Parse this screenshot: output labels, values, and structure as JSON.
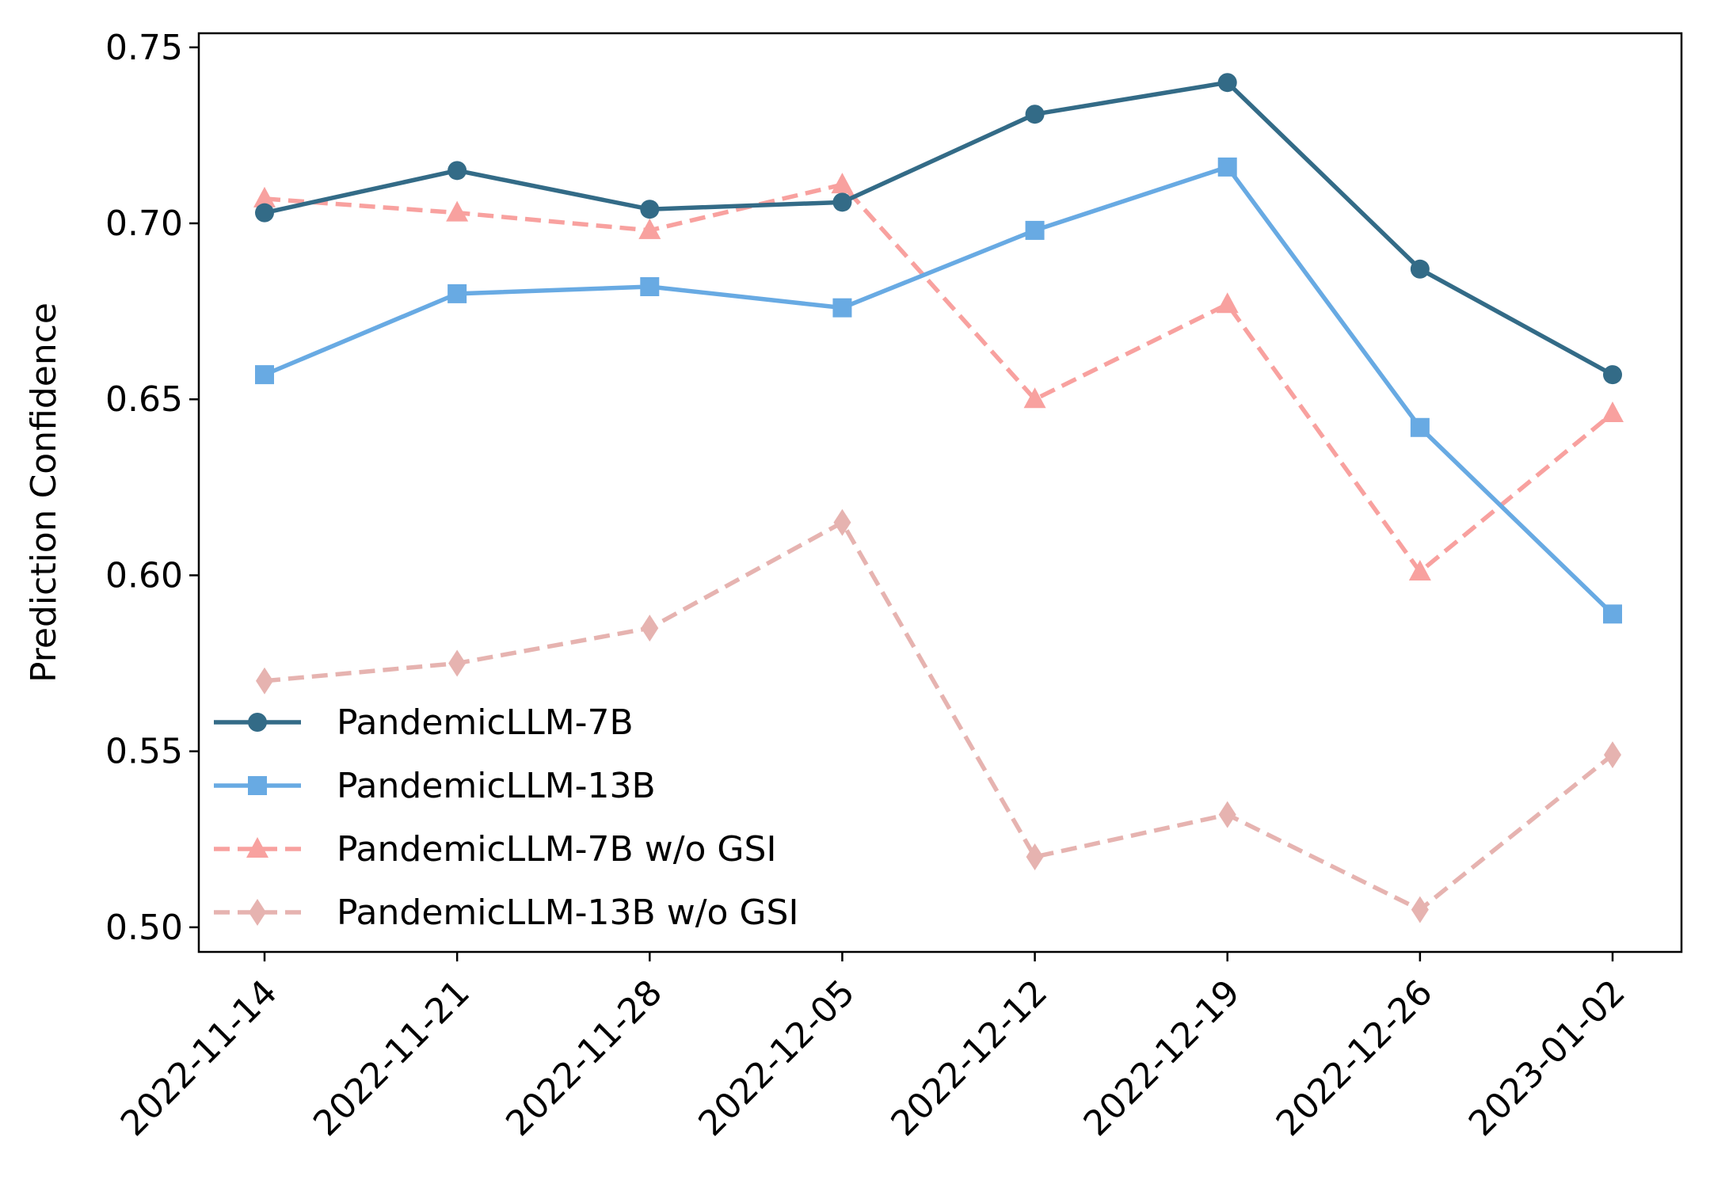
{
  "chart_data": {
    "type": "line",
    "title": "",
    "xlabel": "",
    "ylabel": "Prediction Confidence",
    "ylim": [
      0.493,
      0.754
    ],
    "yticks": [
      "0.50",
      "0.55",
      "0.60",
      "0.65",
      "0.70",
      "0.75"
    ],
    "ytick_values": [
      0.5,
      0.55,
      0.6,
      0.65,
      0.7,
      0.75
    ],
    "x": [
      "2022-11-14",
      "2022-11-21",
      "2022-11-28",
      "2022-12-05",
      "2022-12-12",
      "2022-12-19",
      "2022-12-26",
      "2023-01-02"
    ],
    "grid": false,
    "legend_position": "lower-left",
    "series": [
      {
        "name": "PandemicLLM-7B",
        "values": [
          0.703,
          0.715,
          0.704,
          0.706,
          0.731,
          0.74,
          0.687,
          0.657
        ],
        "color": "#336b87",
        "marker": "circle",
        "line_style": "solid"
      },
      {
        "name": "PandemicLLM-13B",
        "values": [
          0.657,
          0.68,
          0.682,
          0.676,
          0.698,
          0.716,
          0.642,
          0.589
        ],
        "color": "#68aae3",
        "marker": "square",
        "line_style": "solid"
      },
      {
        "name": "PandemicLLM-7B w/o GSI",
        "values": [
          0.707,
          0.703,
          0.698,
          0.711,
          0.65,
          0.677,
          0.601,
          0.646
        ],
        "color": "#f8a19f",
        "marker": "triangle",
        "line_style": "dashed"
      },
      {
        "name": "PandemicLLM-13B w/o GSI",
        "values": [
          0.57,
          0.575,
          0.585,
          0.615,
          0.52,
          0.532,
          0.505,
          0.549
        ],
        "color": "#e6b3b0",
        "marker": "diamond",
        "line_style": "dashed"
      }
    ]
  }
}
